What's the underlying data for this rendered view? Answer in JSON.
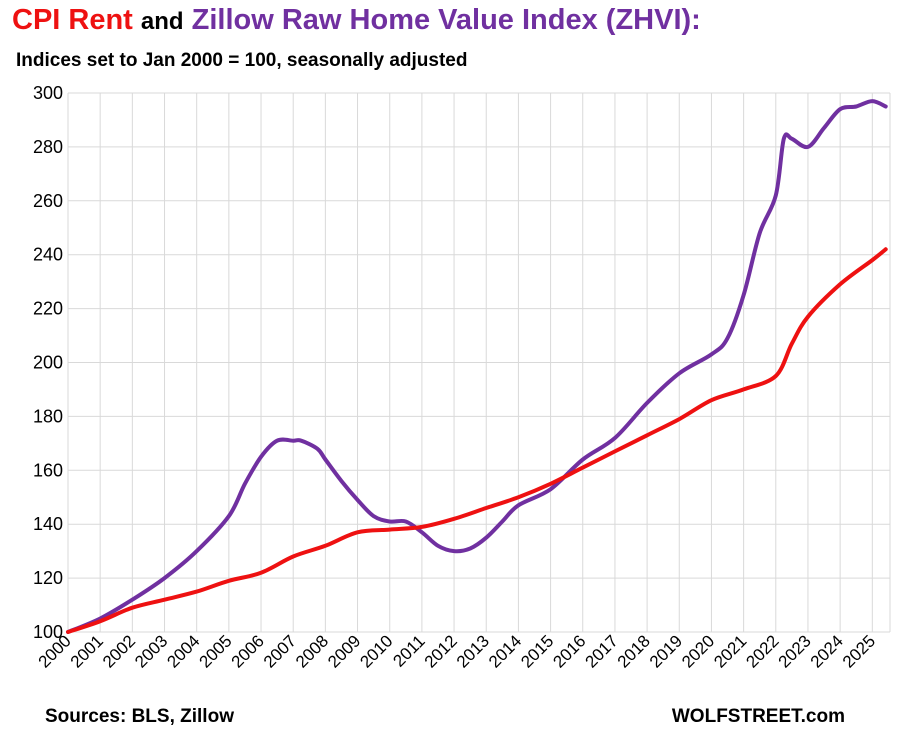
{
  "title": {
    "part1": "CPI Rent",
    "part2": "and",
    "part3": "Zillow Raw Home Value Index (ZHVI):"
  },
  "subtitle": "Indices set to Jan 2000 = 100, seasonally adjusted",
  "footer": {
    "source": "Sources: BLS, Zillow",
    "brand": "WOLFSTREET.com"
  },
  "colors": {
    "rent": "#ee1111",
    "zhvi": "#7030a0",
    "grid": "#d9d9d9"
  },
  "chart_data": {
    "type": "line",
    "title": "CPI Rent and Zillow Raw Home Value Index (ZHVI):",
    "subtitle": "Indices set to Jan 2000 = 100, seasonally adjusted",
    "xlabel": "",
    "ylabel": "",
    "ylim": [
      100,
      300
    ],
    "yticks": [
      "100",
      "120",
      "140",
      "160",
      "180",
      "200",
      "220",
      "240",
      "260",
      "280",
      "300"
    ],
    "xticks": [
      "2000",
      "2001",
      "2002",
      "2003",
      "2004",
      "2005",
      "2006",
      "2007",
      "2008",
      "2009",
      "2010",
      "2011",
      "2012",
      "2013",
      "2014",
      "2015",
      "2016",
      "2017",
      "2018",
      "2019",
      "2020",
      "2021",
      "2022",
      "2023",
      "2024",
      "2025"
    ],
    "grid": true,
    "legend": "none",
    "series": [
      {
        "name": "CPI Rent",
        "color": "#ee1111",
        "x": [
          "2000-01",
          "2001-01",
          "2002-01",
          "2003-01",
          "2004-01",
          "2005-01",
          "2006-01",
          "2007-01",
          "2008-01",
          "2009-01",
          "2010-01",
          "2011-01",
          "2012-01",
          "2013-01",
          "2014-01",
          "2015-01",
          "2016-01",
          "2017-01",
          "2018-01",
          "2019-01",
          "2020-01",
          "2021-01",
          "2022-01",
          "2022-07",
          "2023-01",
          "2024-01",
          "2025-01",
          "2025-06"
        ],
        "values": [
          100,
          104,
          109,
          112,
          115,
          119,
          122,
          128,
          132,
          137,
          138,
          139,
          142,
          146,
          150,
          155,
          161,
          167,
          173,
          179,
          186,
          190,
          195,
          207,
          217,
          229,
          238,
          242
        ]
      },
      {
        "name": "Zillow Raw Home Value Index (ZHVI)",
        "color": "#7030a0",
        "x": [
          "2000-01",
          "2001-01",
          "2002-01",
          "2003-01",
          "2004-01",
          "2005-01",
          "2005-07",
          "2006-01",
          "2006-07",
          "2007-01",
          "2007-04",
          "2007-10",
          "2008-01",
          "2008-07",
          "2009-01",
          "2009-07",
          "2010-01",
          "2010-07",
          "2011-01",
          "2011-07",
          "2012-01",
          "2012-07",
          "2013-01",
          "2013-07",
          "2014-01",
          "2015-01",
          "2016-01",
          "2017-01",
          "2018-01",
          "2019-01",
          "2020-01",
          "2020-07",
          "2021-01",
          "2021-07",
          "2022-01",
          "2022-04",
          "2022-07",
          "2023-01",
          "2023-07",
          "2024-01",
          "2024-07",
          "2025-01",
          "2025-06"
        ],
        "values": [
          100,
          105,
          112,
          120,
          130,
          143,
          155,
          165,
          171,
          171,
          171,
          168,
          164,
          156,
          149,
          143,
          141,
          141,
          137,
          132,
          130,
          131,
          135,
          141,
          147,
          153,
          164,
          172,
          185,
          196,
          203,
          209,
          225,
          248,
          262,
          283,
          283,
          280,
          287,
          294,
          295,
          297,
          295
        ]
      }
    ]
  }
}
